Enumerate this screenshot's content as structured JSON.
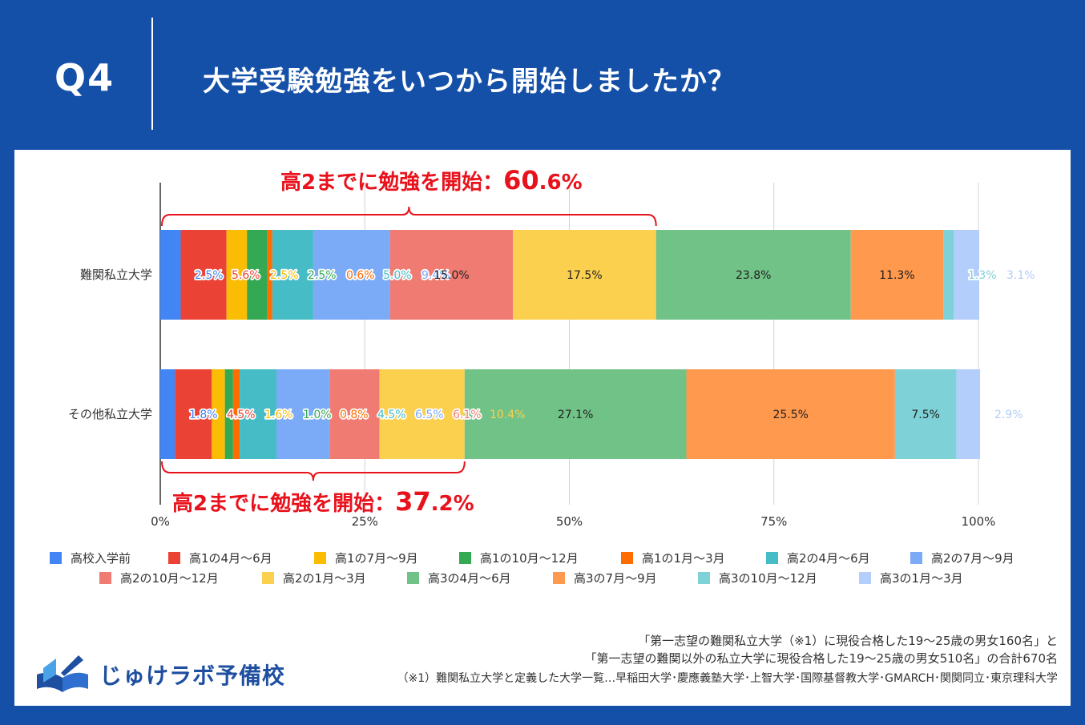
{
  "header": {
    "q_label": "Q4",
    "title": "大学受験勉強をいつから開始しましたか？"
  },
  "chart_data": {
    "type": "stacked-bar-horizontal",
    "title": "大学受験勉強をいつから開始しましたか？",
    "xlim": [
      0,
      100
    ],
    "x_tick_labels": [
      "0%",
      "25%",
      "50%",
      "75%",
      "100%"
    ],
    "categories": [
      "難関私立大学",
      "その他私立大学"
    ],
    "series": [
      {
        "name": "高校入学前",
        "color": "#4285f4",
        "values": [
          2.5,
          1.8
        ],
        "labels": [
          "2.5%",
          "1.8%"
        ]
      },
      {
        "name": "高1の4月～6月",
        "color": "#ea4335",
        "values": [
          5.6,
          4.5
        ],
        "labels": [
          "5.6%",
          "4.5%"
        ]
      },
      {
        "name": "高1の7月～9月",
        "color": "#fbbc04",
        "values": [
          2.5,
          1.6
        ],
        "labels": [
          "2.5%",
          "1.6%"
        ]
      },
      {
        "name": "高1の10月～12月",
        "color": "#34a853",
        "values": [
          2.5,
          1.0
        ],
        "labels": [
          "2.5%",
          "1.0%"
        ]
      },
      {
        "name": "高1の1月～3月",
        "color": "#ff6d01",
        "values": [
          0.6,
          0.8
        ],
        "labels": [
          "0.6%",
          "0.8%"
        ]
      },
      {
        "name": "高2の4月～6月",
        "color": "#46bdc6",
        "values": [
          5.0,
          4.5
        ],
        "labels": [
          "5.0%",
          "4.5%"
        ]
      },
      {
        "name": "高2の7月～9月",
        "color": "#7baaf7",
        "values": [
          9.4,
          6.5
        ],
        "labels": [
          "9.4%",
          "6.5%"
        ]
      },
      {
        "name": "高2の10月～12月",
        "color": "#f07b72",
        "values": [
          15.0,
          6.1
        ],
        "labels": [
          "15.0%",
          "6.1%"
        ]
      },
      {
        "name": "高2の1月～3月",
        "color": "#fcd04f",
        "values": [
          17.5,
          10.4
        ],
        "labels": [
          "17.5%",
          "10.4%"
        ]
      },
      {
        "name": "高3の4月～6月",
        "color": "#71c287",
        "values": [
          23.8,
          27.1
        ],
        "labels": [
          "23.8%",
          "27.1%"
        ]
      },
      {
        "name": "高3の7月～9月",
        "color": "#ff994d",
        "values": [
          11.3,
          25.5
        ],
        "labels": [
          "11.3%",
          "25.5%"
        ]
      },
      {
        "name": "高3の10月～12月",
        "color": "#7ed1d7",
        "values": [
          1.3,
          7.5
        ],
        "labels": [
          "1.3%",
          "7.5%"
        ]
      },
      {
        "name": "高3の1月～3月",
        "color": "#b3cefb",
        "values": [
          3.1,
          2.9
        ],
        "labels": [
          "3.1%",
          "2.9%"
        ]
      }
    ],
    "annotations": [
      {
        "category": "難関私立大学",
        "text_main": "高2までに勉強を開始：",
        "value_big": "60",
        "value_small": ".6%",
        "value": 60.6,
        "placement": "above"
      },
      {
        "category": "その他私立大学",
        "text_main": "高2までに勉強を開始：",
        "value_big": "37",
        "value_small": ".2%",
        "value": 37.2,
        "placement": "below"
      }
    ],
    "legend_position": "bottom",
    "annotation_color": "#e8121c"
  },
  "footnotes": {
    "line1": "「第一志望の難関私立大学（※1）に現役合格した19～25歳の男女160名」と",
    "line2": "「第一志望の難関以外の私立大学に現役合格した19～25歳の男女510名」の合計670名",
    "line3": "（※1）難関私立大学と定義した大学一覧…早稲田大学･慶應義塾大学･上智大学･国際基督教大学･GMARCH･関関同立･東京理科大学"
  },
  "logo": {
    "text": "じゅけラボ予備校",
    "icon": "open-book-icon",
    "color": "#1f4fa0"
  }
}
